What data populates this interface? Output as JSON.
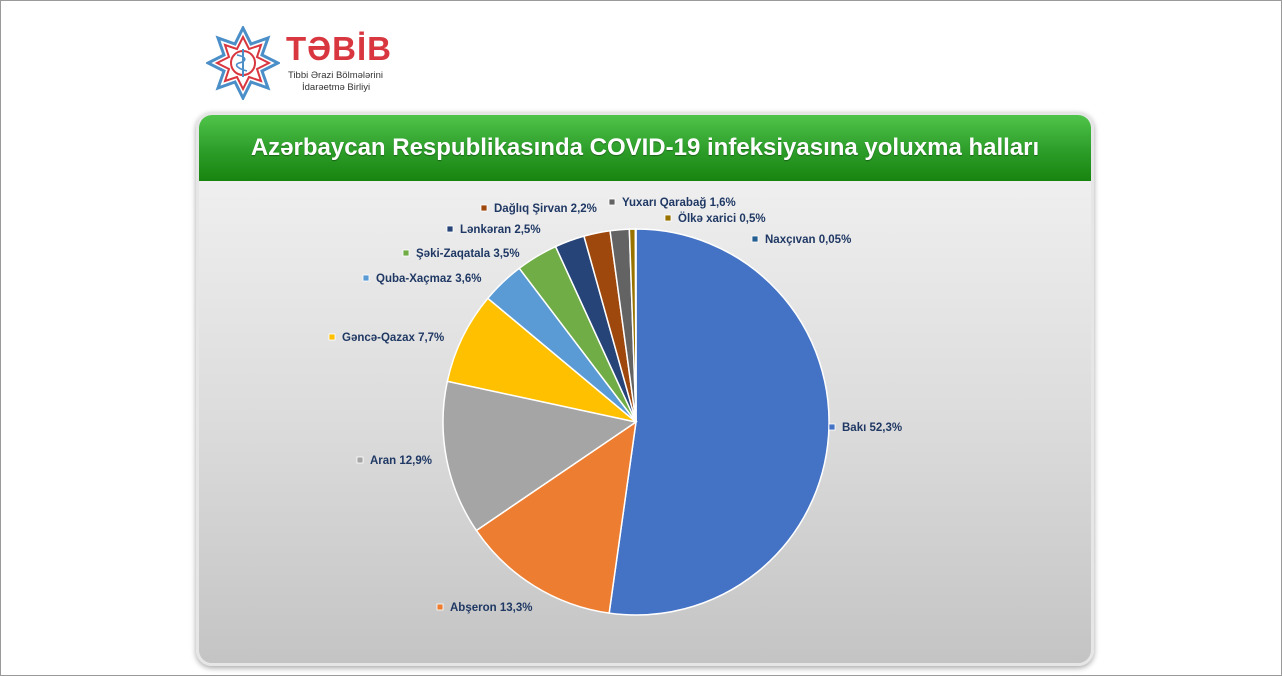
{
  "logo": {
    "name": "TƏBİB",
    "subtitle_line1": "Tibbi Ərazi Bölmələrini",
    "subtitle_line2": "İdarəetmə Birliyi"
  },
  "colors": {
    "header_green": "#2fa02c",
    "label_text": "#1f3864"
  },
  "chart_data": {
    "type": "pie",
    "title": "Azərbaycan Respublikasında COVID-19 infeksiyasına yoluxma halları",
    "legend": "labels next to slices",
    "slices": [
      {
        "name": "Bakı",
        "value": 52.3,
        "label": "Bakı  52,3%",
        "color": "#4472c4"
      },
      {
        "name": "Abşeron",
        "value": 13.3,
        "label": "Abşeron 13,3%",
        "color": "#ed7d31"
      },
      {
        "name": "Aran",
        "value": 12.9,
        "label": "Aran 12,9%",
        "color": "#a5a5a5"
      },
      {
        "name": "Gəncə-Qazax",
        "value": 7.7,
        "label": "Gəncə-Qazax 7,7%",
        "color": "#ffc000"
      },
      {
        "name": "Quba-Xaçmaz",
        "value": 3.6,
        "label": "Quba-Xaçmaz 3,6%",
        "color": "#5b9bd5"
      },
      {
        "name": "Şəki-Zaqatala",
        "value": 3.5,
        "label": "Şəki-Zaqatala 3,5%",
        "color": "#70ad47"
      },
      {
        "name": "Lənkəran",
        "value": 2.5,
        "label": "Lənkəran 2,5%",
        "color": "#264478"
      },
      {
        "name": "Dağlıq Şirvan",
        "value": 2.2,
        "label": "Dağlıq Şirvan 2,2%",
        "color": "#9e480e"
      },
      {
        "name": "Yuxarı Qarabağ",
        "value": 1.6,
        "label": "Yuxarı Qarabağ 1,6%",
        "color": "#636363"
      },
      {
        "name": "Ölkə xarici",
        "value": 0.5,
        "label": "Ölkə xarici 0,5%",
        "color": "#997300"
      },
      {
        "name": "Naxçıvan",
        "value": 0.05,
        "label": "Naxçıvan 0,05%",
        "color": "#255e91"
      }
    ]
  }
}
